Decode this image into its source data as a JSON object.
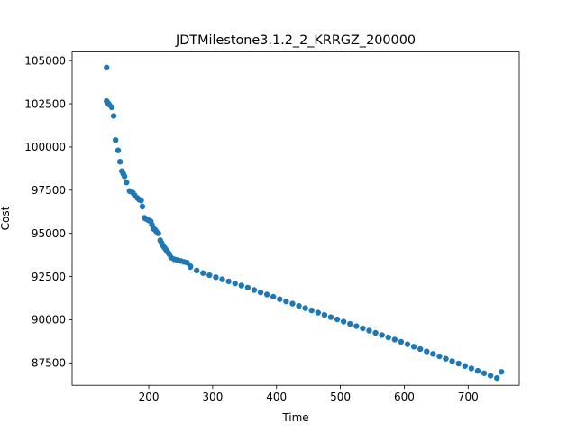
{
  "chart_data": {
    "type": "scatter",
    "title": "JDTMilestone3.1.2_2_KRRGZ_200000",
    "xlabel": "Time",
    "ylabel": "Cost",
    "xlim": [
      80,
      780
    ],
    "ylim": [
      86200,
      105500
    ],
    "xticks": [
      200,
      300,
      400,
      500,
      600,
      700
    ],
    "yticks": [
      87500,
      90000,
      92500,
      95000,
      97500,
      100000,
      102500,
      105000
    ],
    "xtick_labels": [
      "200",
      "300",
      "400",
      "500",
      "600",
      "700"
    ],
    "ytick_labels": [
      "87500",
      "90000",
      "92500",
      "95000",
      "97500",
      "100000",
      "102500",
      "105000"
    ],
    "grid": false,
    "marker_color": "#1f77b4",
    "series": [
      {
        "x": [
          134,
          134,
          136,
          138,
          142,
          145,
          148,
          152,
          155,
          158,
          160,
          162,
          165,
          170,
          175,
          178,
          182,
          185,
          188,
          190,
          193,
          195,
          198,
          200,
          203,
          205,
          207,
          208,
          210,
          212,
          215,
          218,
          220,
          222,
          224,
          226,
          228,
          230,
          232,
          235,
          240,
          245,
          250,
          255,
          260,
          265
        ],
        "y": [
          104600,
          102650,
          102550,
          102450,
          102300,
          101800,
          100400,
          99800,
          99150,
          98600,
          98450,
          98300,
          97950,
          97450,
          97350,
          97200,
          97050,
          96950,
          96900,
          96550,
          95900,
          95850,
          95800,
          95750,
          95700,
          95500,
          95300,
          95250,
          95200,
          95100,
          95000,
          94600,
          94450,
          94300,
          94200,
          94100,
          94000,
          93900,
          93800,
          93600,
          93500,
          93450,
          93400,
          93350,
          93300,
          93100
        ]
      },
      {
        "x": [
          265,
          275,
          285,
          295,
          305,
          315,
          325,
          335,
          345,
          355,
          365,
          375,
          385,
          395,
          405,
          415,
          425,
          435,
          445,
          455,
          465,
          475,
          485,
          495,
          505,
          515,
          525,
          535,
          545,
          555,
          565,
          575,
          585,
          595,
          605,
          615,
          625,
          635,
          645,
          655,
          665,
          675,
          685,
          695,
          705,
          715,
          725,
          735,
          745,
          752
        ],
        "y": [
          93050,
          92850,
          92700,
          92580,
          92460,
          92340,
          92220,
          92100,
          91980,
          91860,
          91720,
          91580,
          91460,
          91330,
          91190,
          91060,
          90930,
          90800,
          90670,
          90540,
          90410,
          90280,
          90150,
          90020,
          89890,
          89760,
          89630,
          89500,
          89370,
          89240,
          89110,
          88980,
          88850,
          88720,
          88580,
          88440,
          88300,
          88160,
          88020,
          87880,
          87740,
          87600,
          87460,
          87320,
          87180,
          87040,
          86900,
          86760,
          86620,
          86980
        ]
      }
    ]
  }
}
